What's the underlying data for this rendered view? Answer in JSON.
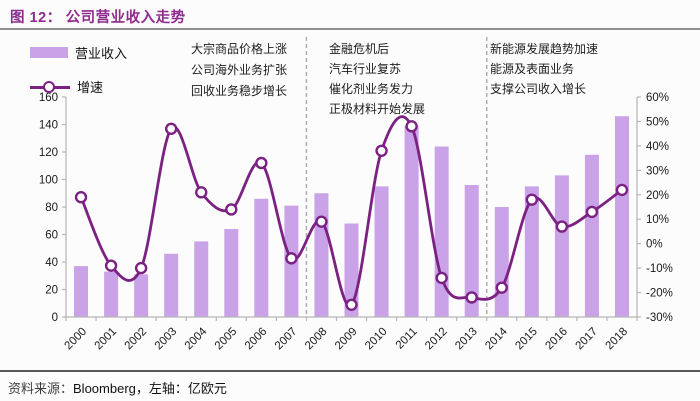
{
  "title": {
    "prefix": "图 12：",
    "text": "公司营业收入走势"
  },
  "legend": {
    "items": [
      {
        "label": "营业收入",
        "swatch": "bar"
      },
      {
        "label": "增速",
        "swatch": "line-marker"
      }
    ]
  },
  "annotations": [
    {
      "lines": [
        "大宗商品价格上涨",
        "公司海外业务扩张",
        "回收业务稳步增长"
      ]
    },
    {
      "lines": [
        "金融危机后",
        "汽车行业复苏",
        "催化剂业务发力",
        "正极材料开始发展"
      ]
    },
    {
      "lines": [
        "新能源发展趋势加速",
        "能源及表面业务",
        "支撑公司收入增长"
      ]
    }
  ],
  "footer": {
    "source_label": "资料来源：",
    "source": "Bloomberg，",
    "axis_note": "左轴：亿欧元"
  },
  "chart_data": {
    "type": "bar+line",
    "title": "公司营业收入走势",
    "categories": [
      "2000",
      "2001",
      "2002",
      "2003",
      "2004",
      "2005",
      "2006",
      "2007",
      "2008",
      "2009",
      "2010",
      "2011",
      "2012",
      "2013",
      "2014",
      "2015",
      "2016",
      "2017",
      "2018"
    ],
    "series": [
      {
        "name": "营业收入",
        "type": "bar",
        "axis": "left",
        "unit": "亿欧元",
        "values": [
          37,
          33,
          31,
          46,
          55,
          64,
          86,
          81,
          90,
          68,
          95,
          139,
          124,
          96,
          80,
          95,
          103,
          118,
          146
        ]
      },
      {
        "name": "增速",
        "type": "line",
        "axis": "right",
        "unit": "%",
        "values": [
          19,
          -9,
          -10,
          47,
          21,
          14,
          33,
          -6,
          9,
          -25,
          38,
          48,
          -14,
          -22,
          -18,
          18,
          7,
          13,
          22
        ]
      }
    ],
    "left_axis": {
      "min": 0,
      "max": 160,
      "step": 20,
      "ticks": [
        "0",
        "20",
        "40",
        "60",
        "80",
        "100",
        "120",
        "140",
        "160"
      ]
    },
    "right_axis": {
      "min": -30,
      "max": 60,
      "step": 10,
      "ticks": [
        "-30%",
        "-20%",
        "-10%",
        "0%",
        "10%",
        "20%",
        "30%",
        "40%",
        "50%",
        "60%"
      ]
    },
    "dividers_after_category_index": [
      7,
      13
    ],
    "legend_position": "top-left",
    "grid": false,
    "colors": {
      "bar": "#c9a2e8",
      "line": "#7b2182",
      "marker_fill": "#ffffff",
      "divider": "#a9a9a9",
      "spine": "#b5b5b5",
      "tick_text": "#1a1a1a",
      "title": "#8e2b8e"
    }
  }
}
